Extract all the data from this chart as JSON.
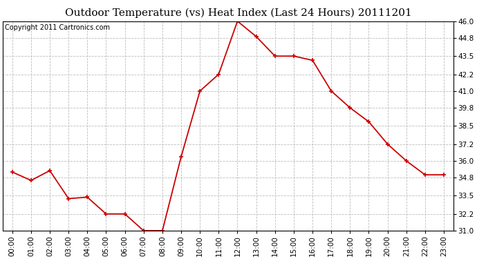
{
  "title": "Outdoor Temperature (vs) Heat Index (Last 24 Hours) 20111201",
  "copyright": "Copyright 2011 Cartronics.com",
  "x_labels": [
    "00:00",
    "01:00",
    "02:00",
    "03:00",
    "04:00",
    "05:00",
    "06:00",
    "07:00",
    "08:00",
    "09:00",
    "10:00",
    "11:00",
    "12:00",
    "13:00",
    "14:00",
    "15:00",
    "16:00",
    "17:00",
    "18:00",
    "19:00",
    "20:00",
    "21:00",
    "22:00",
    "23:00"
  ],
  "y_values": [
    35.2,
    34.6,
    35.3,
    33.3,
    33.4,
    32.2,
    32.2,
    31.0,
    31.0,
    36.3,
    41.0,
    42.2,
    46.0,
    44.9,
    43.5,
    43.5,
    43.2,
    41.0,
    39.8,
    38.8,
    37.2,
    36.0,
    35.0,
    35.0
  ],
  "line_color": "#cc0000",
  "marker": "+",
  "marker_size": 5,
  "marker_linewidth": 1.2,
  "line_width": 1.3,
  "bg_color": "#ffffff",
  "plot_bg_color": "#ffffff",
  "grid_color": "#bbbbbb",
  "grid_style": "--",
  "ylim": [
    31.0,
    46.0
  ],
  "yticks": [
    31.0,
    32.2,
    33.5,
    34.8,
    36.0,
    37.2,
    38.5,
    39.8,
    41.0,
    42.2,
    43.5,
    44.8,
    46.0
  ],
  "title_fontsize": 11,
  "copyright_fontsize": 7,
  "tick_fontsize": 7.5
}
